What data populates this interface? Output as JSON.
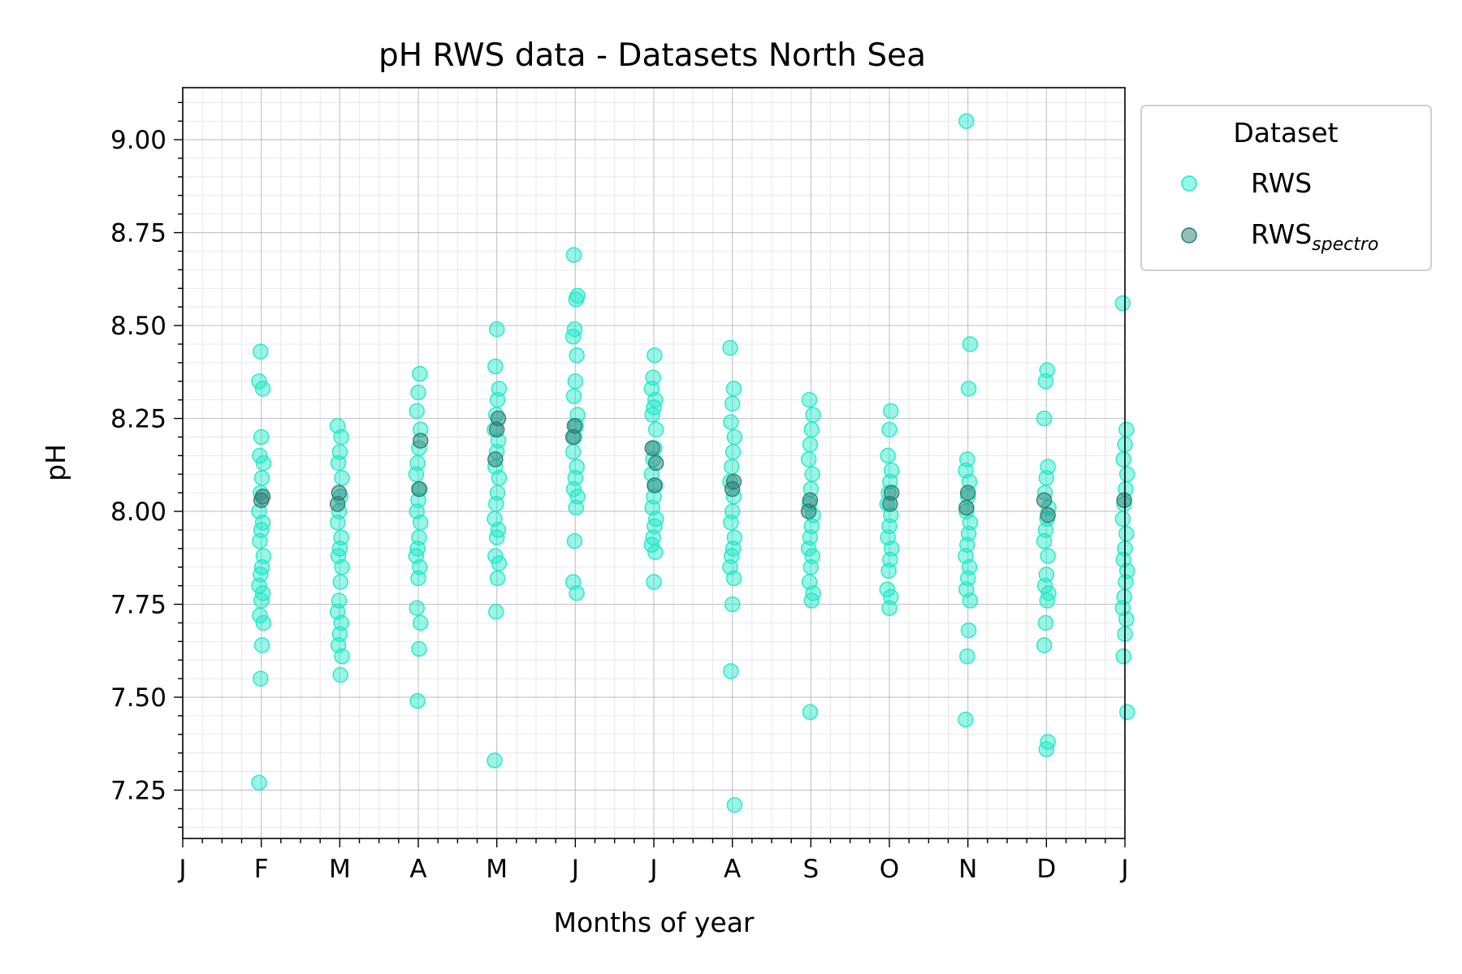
{
  "chart_data": {
    "type": "scatter",
    "title": "pH RWS data - Datasets North Sea",
    "xlabel": "Months of year",
    "ylabel": "pH",
    "xlim": [
      0,
      12
    ],
    "ylim": [
      7.12,
      9.14
    ],
    "x_ticks": [
      0,
      1,
      2,
      3,
      4,
      5,
      6,
      7,
      8,
      9,
      10,
      11,
      12
    ],
    "x_tick_labels": [
      "J",
      "F",
      "M",
      "A",
      "M",
      "J",
      "J",
      "A",
      "S",
      "O",
      "N",
      "D",
      "J"
    ],
    "y_ticks": [
      7.25,
      7.5,
      7.75,
      8.0,
      8.25,
      8.5,
      8.75,
      9.0
    ],
    "y_tick_labels": [
      "7.25",
      "7.50",
      "7.75",
      "8.00",
      "8.25",
      "8.50",
      "8.75",
      "9.00"
    ],
    "grid": true,
    "minor_grid": true,
    "legend": {
      "title": "Dataset",
      "placement": "outside-top-right"
    },
    "series": [
      {
        "name": "RWS",
        "color": "#1de9c8",
        "points": [
          [
            1.0,
            7.27
          ],
          [
            1.0,
            7.55
          ],
          [
            1.0,
            7.64
          ],
          [
            1.0,
            7.7
          ],
          [
            1.0,
            7.72
          ],
          [
            1.0,
            7.76
          ],
          [
            1.0,
            7.78
          ],
          [
            1.0,
            7.8
          ],
          [
            1.0,
            7.83
          ],
          [
            1.0,
            7.85
          ],
          [
            1.0,
            7.88
          ],
          [
            1.0,
            7.92
          ],
          [
            1.0,
            7.95
          ],
          [
            1.0,
            7.97
          ],
          [
            1.0,
            8.0
          ],
          [
            1.0,
            8.05
          ],
          [
            1.0,
            8.09
          ],
          [
            1.0,
            8.13
          ],
          [
            1.0,
            8.15
          ],
          [
            1.0,
            8.2
          ],
          [
            1.0,
            8.33
          ],
          [
            1.0,
            8.35
          ],
          [
            1.0,
            8.43
          ],
          [
            2.0,
            7.56
          ],
          [
            2.0,
            7.61
          ],
          [
            2.0,
            7.64
          ],
          [
            2.0,
            7.67
          ],
          [
            2.0,
            7.7
          ],
          [
            2.0,
            7.73
          ],
          [
            2.0,
            7.76
          ],
          [
            2.0,
            7.81
          ],
          [
            2.0,
            7.85
          ],
          [
            2.0,
            7.88
          ],
          [
            2.0,
            7.9
          ],
          [
            2.0,
            7.93
          ],
          [
            2.0,
            7.97
          ],
          [
            2.0,
            8.0
          ],
          [
            2.0,
            8.04
          ],
          [
            2.0,
            8.09
          ],
          [
            2.0,
            8.13
          ],
          [
            2.0,
            8.16
          ],
          [
            2.0,
            8.2
          ],
          [
            2.0,
            8.23
          ],
          [
            3.0,
            7.49
          ],
          [
            3.0,
            7.63
          ],
          [
            3.0,
            7.7
          ],
          [
            3.0,
            7.74
          ],
          [
            3.0,
            7.82
          ],
          [
            3.0,
            7.85
          ],
          [
            3.0,
            7.88
          ],
          [
            3.0,
            7.9
          ],
          [
            3.0,
            7.93
          ],
          [
            3.0,
            7.97
          ],
          [
            3.0,
            8.0
          ],
          [
            3.0,
            8.03
          ],
          [
            3.0,
            8.06
          ],
          [
            3.0,
            8.1
          ],
          [
            3.0,
            8.13
          ],
          [
            3.0,
            8.17
          ],
          [
            3.0,
            8.22
          ],
          [
            3.0,
            8.27
          ],
          [
            3.0,
            8.32
          ],
          [
            3.0,
            8.37
          ],
          [
            4.0,
            7.33
          ],
          [
            4.0,
            7.73
          ],
          [
            4.0,
            7.82
          ],
          [
            4.0,
            7.86
          ],
          [
            4.0,
            7.88
          ],
          [
            4.0,
            7.93
          ],
          [
            4.0,
            7.95
          ],
          [
            4.0,
            7.98
          ],
          [
            4.0,
            8.02
          ],
          [
            4.0,
            8.05
          ],
          [
            4.0,
            8.09
          ],
          [
            4.0,
            8.12
          ],
          [
            4.0,
            8.16
          ],
          [
            4.0,
            8.19
          ],
          [
            4.0,
            8.22
          ],
          [
            4.0,
            8.26
          ],
          [
            4.0,
            8.3
          ],
          [
            4.0,
            8.33
          ],
          [
            4.0,
            8.39
          ],
          [
            4.0,
            8.49
          ],
          [
            5.0,
            7.78
          ],
          [
            5.0,
            7.81
          ],
          [
            5.0,
            7.92
          ],
          [
            5.0,
            8.01
          ],
          [
            5.0,
            8.04
          ],
          [
            5.0,
            8.06
          ],
          [
            5.0,
            8.09
          ],
          [
            5.0,
            8.12
          ],
          [
            5.0,
            8.16
          ],
          [
            5.0,
            8.2
          ],
          [
            5.0,
            8.23
          ],
          [
            5.0,
            8.26
          ],
          [
            5.0,
            8.31
          ],
          [
            5.0,
            8.35
          ],
          [
            5.0,
            8.42
          ],
          [
            5.0,
            8.47
          ],
          [
            5.0,
            8.49
          ],
          [
            5.0,
            8.57
          ],
          [
            5.0,
            8.58
          ],
          [
            5.0,
            8.69
          ],
          [
            6.0,
            7.81
          ],
          [
            6.0,
            7.89
          ],
          [
            6.0,
            7.91
          ],
          [
            6.0,
            7.93
          ],
          [
            6.0,
            7.96
          ],
          [
            6.0,
            7.98
          ],
          [
            6.0,
            8.01
          ],
          [
            6.0,
            8.04
          ],
          [
            6.0,
            8.07
          ],
          [
            6.0,
            8.1
          ],
          [
            6.0,
            8.14
          ],
          [
            6.0,
            8.17
          ],
          [
            6.0,
            8.22
          ],
          [
            6.0,
            8.26
          ],
          [
            6.0,
            8.28
          ],
          [
            6.0,
            8.3
          ],
          [
            6.0,
            8.33
          ],
          [
            6.0,
            8.36
          ],
          [
            6.0,
            8.42
          ],
          [
            7.0,
            7.21
          ],
          [
            7.0,
            7.57
          ],
          [
            7.0,
            7.75
          ],
          [
            7.0,
            7.82
          ],
          [
            7.0,
            7.85
          ],
          [
            7.0,
            7.88
          ],
          [
            7.0,
            7.9
          ],
          [
            7.0,
            7.93
          ],
          [
            7.0,
            7.97
          ],
          [
            7.0,
            8.0
          ],
          [
            7.0,
            8.04
          ],
          [
            7.0,
            8.08
          ],
          [
            7.0,
            8.12
          ],
          [
            7.0,
            8.16
          ],
          [
            7.0,
            8.2
          ],
          [
            7.0,
            8.24
          ],
          [
            7.0,
            8.29
          ],
          [
            7.0,
            8.33
          ],
          [
            7.0,
            8.44
          ],
          [
            8.0,
            7.46
          ],
          [
            8.0,
            7.76
          ],
          [
            8.0,
            7.78
          ],
          [
            8.0,
            7.81
          ],
          [
            8.0,
            7.85
          ],
          [
            8.0,
            7.88
          ],
          [
            8.0,
            7.9
          ],
          [
            8.0,
            7.93
          ],
          [
            8.0,
            7.96
          ],
          [
            8.0,
            7.99
          ],
          [
            8.0,
            8.02
          ],
          [
            8.0,
            8.06
          ],
          [
            8.0,
            8.1
          ],
          [
            8.0,
            8.14
          ],
          [
            8.0,
            8.18
          ],
          [
            8.0,
            8.22
          ],
          [
            8.0,
            8.26
          ],
          [
            8.0,
            8.3
          ],
          [
            9.0,
            7.74
          ],
          [
            9.0,
            7.77
          ],
          [
            9.0,
            7.79
          ],
          [
            9.0,
            7.84
          ],
          [
            9.0,
            7.87
          ],
          [
            9.0,
            7.9
          ],
          [
            9.0,
            7.93
          ],
          [
            9.0,
            7.96
          ],
          [
            9.0,
            7.99
          ],
          [
            9.0,
            8.02
          ],
          [
            9.0,
            8.05
          ],
          [
            9.0,
            8.08
          ],
          [
            9.0,
            8.11
          ],
          [
            9.0,
            8.15
          ],
          [
            9.0,
            8.22
          ],
          [
            9.0,
            8.27
          ],
          [
            10.0,
            7.44
          ],
          [
            10.0,
            7.61
          ],
          [
            10.0,
            7.68
          ],
          [
            10.0,
            7.76
          ],
          [
            10.0,
            7.79
          ],
          [
            10.0,
            7.82
          ],
          [
            10.0,
            7.85
          ],
          [
            10.0,
            7.88
          ],
          [
            10.0,
            7.91
          ],
          [
            10.0,
            7.94
          ],
          [
            10.0,
            7.97
          ],
          [
            10.0,
            8.0
          ],
          [
            10.0,
            8.04
          ],
          [
            10.0,
            8.08
          ],
          [
            10.0,
            8.11
          ],
          [
            10.0,
            8.14
          ],
          [
            10.0,
            8.33
          ],
          [
            10.0,
            8.45
          ],
          [
            10.0,
            9.05
          ],
          [
            11.0,
            7.36
          ],
          [
            11.0,
            7.38
          ],
          [
            11.0,
            7.64
          ],
          [
            11.0,
            7.7
          ],
          [
            11.0,
            7.76
          ],
          [
            11.0,
            7.78
          ],
          [
            11.0,
            7.8
          ],
          [
            11.0,
            7.83
          ],
          [
            11.0,
            7.88
          ],
          [
            11.0,
            7.92
          ],
          [
            11.0,
            7.95
          ],
          [
            11.0,
            7.98
          ],
          [
            11.0,
            8.01
          ],
          [
            11.0,
            8.05
          ],
          [
            11.0,
            8.09
          ],
          [
            11.0,
            8.12
          ],
          [
            11.0,
            8.25
          ],
          [
            11.0,
            8.35
          ],
          [
            11.0,
            8.38
          ],
          [
            12.0,
            7.46
          ],
          [
            12.0,
            7.61
          ],
          [
            12.0,
            7.67
          ],
          [
            12.0,
            7.71
          ],
          [
            12.0,
            7.74
          ],
          [
            12.0,
            7.77
          ],
          [
            12.0,
            7.81
          ],
          [
            12.0,
            7.84
          ],
          [
            12.0,
            7.87
          ],
          [
            12.0,
            7.9
          ],
          [
            12.0,
            7.94
          ],
          [
            12.0,
            7.98
          ],
          [
            12.0,
            8.02
          ],
          [
            12.0,
            8.06
          ],
          [
            12.0,
            8.1
          ],
          [
            12.0,
            8.14
          ],
          [
            12.0,
            8.18
          ],
          [
            12.0,
            8.22
          ],
          [
            12.0,
            8.56
          ]
        ]
      },
      {
        "name": "RWS",
        "name_subscript": "spectro",
        "color": "#2a7d73",
        "points": [
          [
            1.0,
            8.03
          ],
          [
            1.0,
            8.04
          ],
          [
            2.0,
            8.02
          ],
          [
            2.0,
            8.05
          ],
          [
            3.0,
            8.06
          ],
          [
            3.0,
            8.19
          ],
          [
            4.0,
            8.14
          ],
          [
            4.0,
            8.22
          ],
          [
            4.0,
            8.25
          ],
          [
            5.0,
            8.2
          ],
          [
            5.0,
            8.23
          ],
          [
            6.0,
            8.07
          ],
          [
            6.0,
            8.13
          ],
          [
            6.0,
            8.17
          ],
          [
            7.0,
            8.06
          ],
          [
            7.0,
            8.08
          ],
          [
            8.0,
            8.0
          ],
          [
            8.0,
            8.03
          ],
          [
            9.0,
            8.02
          ],
          [
            9.0,
            8.05
          ],
          [
            10.0,
            8.01
          ],
          [
            10.0,
            8.05
          ],
          [
            11.0,
            7.99
          ],
          [
            11.0,
            8.03
          ],
          [
            12.0,
            8.03
          ]
        ]
      }
    ]
  }
}
